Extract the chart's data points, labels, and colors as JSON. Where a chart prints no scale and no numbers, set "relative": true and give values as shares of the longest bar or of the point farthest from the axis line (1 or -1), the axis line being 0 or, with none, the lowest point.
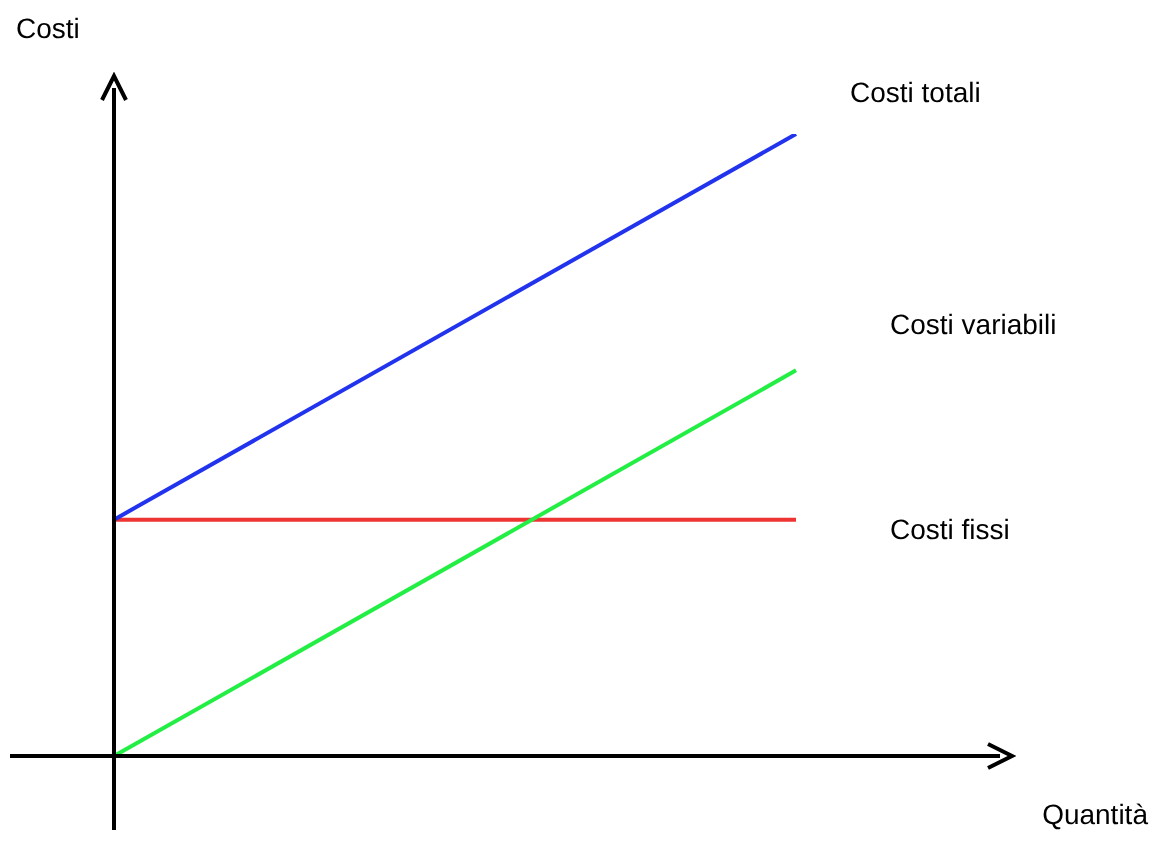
{
  "chart_data": {
    "type": "line",
    "relative": true,
    "xlabel": "Quantità",
    "ylabel": "Costi",
    "categories": [
      null,
      null
    ],
    "series": [
      {
        "name": "Costi totali",
        "color": "#2233ee",
        "values": [
          0.38,
          1
        ]
      },
      {
        "name": "Costi variabili",
        "color": "#22ee44",
        "values": [
          0,
          0.62
        ]
      },
      {
        "name": "Costi fissi",
        "color": "#ee3333",
        "values": [
          0.38,
          0.38
        ]
      }
    ]
  }
}
